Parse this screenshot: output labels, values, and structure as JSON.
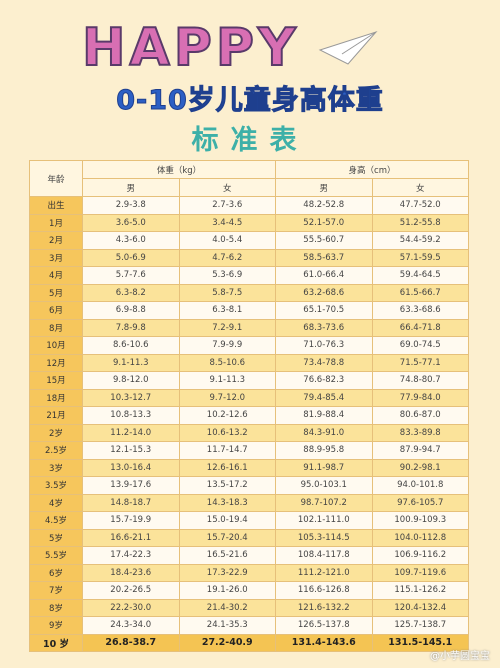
{
  "header": {
    "decoration": "HAPPY",
    "title": "0-10岁儿童身高体重",
    "subtitle": "标准表"
  },
  "table": {
    "columns": {
      "age": "年龄",
      "weight": "体重（kg）",
      "height": "身高（cm）",
      "male": "男",
      "female": "女"
    },
    "rows": [
      [
        "出生",
        "2.9-3.8",
        "2.7-3.6",
        "48.2-52.8",
        "47.7-52.0"
      ],
      [
        "1月",
        "3.6-5.0",
        "3.4-4.5",
        "52.1-57.0",
        "51.2-55.8"
      ],
      [
        "2月",
        "4.3-6.0",
        "4.0-5.4",
        "55.5-60.7",
        "54.4-59.2"
      ],
      [
        "3月",
        "5.0-6.9",
        "4.7-6.2",
        "58.5-63.7",
        "57.1-59.5"
      ],
      [
        "4月",
        "5.7-7.6",
        "5.3-6.9",
        "61.0-66.4",
        "59.4-64.5"
      ],
      [
        "5月",
        "6.3-8.2",
        "5.8-7.5",
        "63.2-68.6",
        "61.5-66.7"
      ],
      [
        "6月",
        "6.9-8.8",
        "6.3-8.1",
        "65.1-70.5",
        "63.3-68.6"
      ],
      [
        "8月",
        "7.8-9.8",
        "7.2-9.1",
        "68.3-73.6",
        "66.4-71.8"
      ],
      [
        "10月",
        "8.6-10.6",
        "7.9-9.9",
        "71.0-76.3",
        "69.0-74.5"
      ],
      [
        "12月",
        "9.1-11.3",
        "8.5-10.6",
        "73.4-78.8",
        "71.5-77.1"
      ],
      [
        "15月",
        "9.8-12.0",
        "9.1-11.3",
        "76.6-82.3",
        "74.8-80.7"
      ],
      [
        "18月",
        "10.3-12.7",
        "9.7-12.0",
        "79.4-85.4",
        "77.9-84.0"
      ],
      [
        "21月",
        "10.8-13.3",
        "10.2-12.6",
        "81.9-88.4",
        "80.6-87.0"
      ],
      [
        "2岁",
        "11.2-14.0",
        "10.6-13.2",
        "84.3-91.0",
        "83.3-89.8"
      ],
      [
        "2.5岁",
        "12.1-15.3",
        "11.7-14.7",
        "88.9-95.8",
        "87.9-94.7"
      ],
      [
        "3岁",
        "13.0-16.4",
        "12.6-16.1",
        "91.1-98.7",
        "90.2-98.1"
      ],
      [
        "3.5岁",
        "13.9-17.6",
        "13.5-17.2",
        "95.0-103.1",
        "94.0-101.8"
      ],
      [
        "4岁",
        "14.8-18.7",
        "14.3-18.3",
        "98.7-107.2",
        "97.6-105.7"
      ],
      [
        "4.5岁",
        "15.7-19.9",
        "15.0-19.4",
        "102.1-111.0",
        "100.9-109.3"
      ],
      [
        "5岁",
        "16.6-21.1",
        "15.7-20.4",
        "105.3-114.5",
        "104.0-112.8"
      ],
      [
        "5.5岁",
        "17.4-22.3",
        "16.5-21.6",
        "108.4-117.8",
        "106.9-116.2"
      ],
      [
        "6岁",
        "18.4-23.6",
        "17.3-22.9",
        "111.2-121.0",
        "109.7-119.6"
      ],
      [
        "7岁",
        "20.2-26.5",
        "19.1-26.0",
        "116.6-126.8",
        "115.1-126.2"
      ],
      [
        "8岁",
        "22.2-30.0",
        "21.4-30.2",
        "121.6-132.2",
        "120.4-132.4"
      ],
      [
        "9岁",
        "24.3-34.0",
        "24.1-35.3",
        "126.5-137.8",
        "125.7-138.7"
      ],
      [
        "10 岁",
        "26.8-38.7",
        "27.2-40.9",
        "131.4-143.6",
        "131.5-145.1"
      ]
    ]
  },
  "watermark": "@小芋圆宝宝"
}
